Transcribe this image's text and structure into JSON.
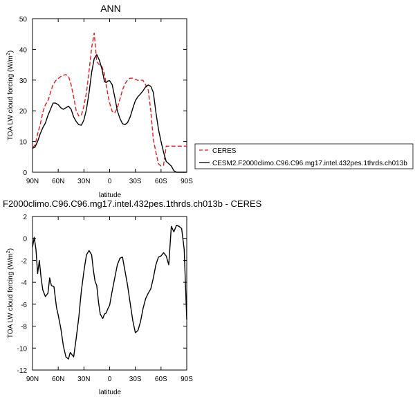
{
  "chart_data": [
    {
      "type": "line",
      "title": "ANN",
      "xlabel": "latitude",
      "ylabel_main": "TOA LW cloud forcing (W/m",
      "ylabel_sup": "2",
      "ylabel_close": ")",
      "xlim": [
        90,
        -90
      ],
      "ylim": [
        0,
        50
      ],
      "xticks": [
        90,
        60,
        30,
        0,
        -30,
        -60,
        -90
      ],
      "xtick_labels": [
        "90N",
        "60N",
        "30N",
        "0",
        "30S",
        "60S",
        "90S"
      ],
      "yticks": [
        0,
        10,
        20,
        30,
        40,
        50
      ],
      "ytick_labels": [
        "0",
        "10",
        "20",
        "30",
        "40",
        "50"
      ],
      "grid": false,
      "legend_placement": "right",
      "series": [
        {
          "name": "CERES",
          "color": "#e8191a",
          "dash": "dashed",
          "x": [
            90,
            87,
            84,
            81,
            78,
            75,
            72,
            69,
            66,
            63,
            60,
            57,
            54,
            51,
            48,
            45,
            42,
            39,
            36,
            33,
            30,
            27,
            24,
            21,
            18,
            15,
            12,
            9,
            6,
            4,
            2,
            0,
            -3,
            -6,
            -9,
            -12,
            -15,
            -18,
            -21,
            -24,
            -27,
            -30,
            -33,
            -36,
            -39,
            -42,
            -45,
            -48,
            -51,
            -54,
            -57,
            -60,
            -63,
            -66,
            -69,
            -72,
            -75,
            -78,
            -81,
            -84,
            -87,
            -90
          ],
          "y": [
            8.1,
            8.8,
            12.5,
            15.5,
            19.5,
            22,
            23.2,
            26,
            28.5,
            29.8,
            30.5,
            31.2,
            31.6,
            31.8,
            31.3,
            28.5,
            24.5,
            20,
            18.3,
            18.6,
            21.5,
            26,
            33,
            40.5,
            45.3,
            36,
            35,
            34.4,
            32,
            28.5,
            25.2,
            22.6,
            19.8,
            19.3,
            21,
            23.8,
            26.8,
            28.8,
            30.1,
            30.6,
            30.6,
            30.3,
            29.9,
            30.0,
            29.9,
            28.5,
            26.8,
            20,
            10.6,
            6.5,
            2.8,
            2,
            2.3,
            8.5,
            8.5,
            8.5,
            8.5,
            8.5,
            8.5,
            8.5,
            8.5,
            8.5
          ]
        },
        {
          "name": "CESM2.F2000climo.C96.C96.mg17.intel.432pes.1thrds.ch013b",
          "color": "#000000",
          "dash": "solid",
          "x": [
            90,
            87,
            84,
            81,
            78,
            75,
            72,
            69,
            66,
            63,
            60,
            57,
            54,
            51,
            48,
            45,
            42,
            39,
            36,
            33,
            30,
            27,
            24,
            21,
            18,
            15,
            12,
            9,
            6,
            4,
            2,
            0,
            -3,
            -6,
            -9,
            -12,
            -15,
            -18,
            -21,
            -24,
            -27,
            -30,
            -33,
            -36,
            -39,
            -42,
            -45,
            -48,
            -51,
            -54,
            -57,
            -60,
            -63,
            -66,
            -69,
            -72,
            -75,
            -78,
            -81,
            -84,
            -87,
            -90
          ],
          "y": [
            7.8,
            8.2,
            10,
            12.5,
            14.5,
            16,
            18.5,
            20.5,
            22.5,
            22.5,
            22,
            21,
            20.5,
            21,
            21.5,
            20.5,
            18,
            16.5,
            15.5,
            15.3,
            17,
            20.5,
            26,
            32.5,
            37,
            38.3,
            36.5,
            33.6,
            29.5,
            29.2,
            29.7,
            29.8,
            28.5,
            24.5,
            20,
            17.5,
            15.8,
            15.5,
            16.2,
            18,
            20.8,
            23.3,
            24.6,
            25.5,
            26.5,
            27.8,
            28.4,
            28,
            26,
            19.5,
            14,
            10,
            6.5,
            3.5,
            2.8,
            2,
            0.5,
            0,
            0,
            0,
            0,
            0
          ]
        }
      ]
    },
    {
      "type": "line",
      "title": "F2000climo.C96.C96.mg17.intel.432pes.1thrds.ch013b - CERES",
      "xlabel": "latitude",
      "ylabel_main": "TOA LW cloud forcing (W/m",
      "ylabel_sup": "2",
      "ylabel_close": ")",
      "xlim": [
        90,
        -90
      ],
      "ylim": [
        -12,
        2
      ],
      "xticks": [
        90,
        60,
        30,
        0,
        -30,
        -60,
        -90
      ],
      "xtick_labels": [
        "90N",
        "60N",
        "30N",
        "0",
        "30S",
        "60S",
        "90S"
      ],
      "yticks": [
        -12,
        -10,
        -8,
        -6,
        -4,
        -2,
        0,
        2
      ],
      "ytick_labels": [
        "-12",
        "-10",
        "-8",
        "-6",
        "-4",
        "-2",
        "0",
        "2"
      ],
      "grid": false,
      "series": [
        {
          "color": "#000000",
          "dash": "solid",
          "x": [
            90,
            88,
            86,
            84,
            82,
            80,
            78,
            75,
            72,
            70,
            68,
            65,
            62,
            60,
            57,
            54,
            51,
            48,
            46,
            44,
            42,
            39,
            36,
            33,
            30,
            27,
            24,
            21,
            19,
            17,
            15,
            13,
            11,
            8,
            6,
            4,
            2,
            0,
            -3,
            -6,
            -9,
            -12,
            -15,
            -18,
            -21,
            -24,
            -27,
            -30,
            -33,
            -36,
            -39,
            -42,
            -45,
            -48,
            -51,
            -54,
            -57,
            -60,
            -63,
            -66,
            -69,
            -72,
            -75,
            -78,
            -81,
            -84,
            -87,
            -90
          ],
          "y": [
            -0.8,
            0.1,
            -1.0,
            -3.2,
            -2.0,
            -3.6,
            -4.7,
            -5.3,
            -5.0,
            -3.6,
            -4.3,
            -4.4,
            -6.3,
            -7.0,
            -8.2,
            -9.8,
            -10.8,
            -11.0,
            -10.4,
            -10.6,
            -10.8,
            -9.1,
            -7.2,
            -4.8,
            -3.0,
            -1.5,
            -1.1,
            -1.5,
            -2.9,
            -3.9,
            -4.3,
            -5.8,
            -6.9,
            -7.3,
            -6.9,
            -6.8,
            -6.4,
            -6.1,
            -4.8,
            -3.6,
            -2.4,
            -1.8,
            -1.7,
            -3.0,
            -4.3,
            -5.9,
            -7.5,
            -8.6,
            -8.4,
            -7.6,
            -6.4,
            -5.5,
            -5.0,
            -4.6,
            -3.6,
            -2.4,
            -1.7,
            -1.6,
            -1.3,
            -1.6,
            -2.4,
            1.1,
            0.6,
            1.2,
            1.1,
            0.9,
            -1.0,
            -7.4
          ]
        }
      ]
    }
  ]
}
